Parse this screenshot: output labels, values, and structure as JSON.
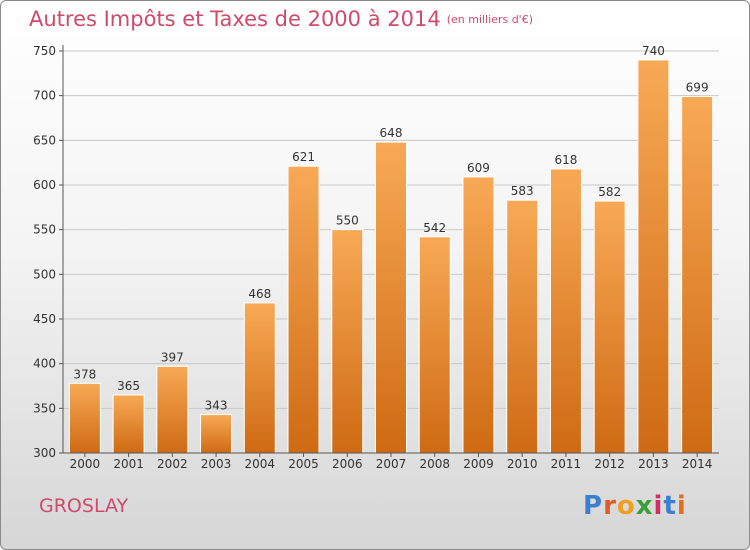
{
  "title": "Autres Impôts et Taxes de 2000 à 2014",
  "subtitle": "(en milliers d'€)",
  "location": "GROSLAY",
  "logo": {
    "text": "Proxiti",
    "letter_colors": [
      "#3a7fd0",
      "#e05a2a",
      "#f0a020",
      "#3a9e3a",
      "#d03060",
      "#3a7fd0",
      "#e07020"
    ]
  },
  "colors": {
    "bar_top": "#f8a955",
    "bar_bottom": "#cf6a14",
    "title": "#d04a6a"
  },
  "chart_data": {
    "type": "bar",
    "categories": [
      "2000",
      "2001",
      "2002",
      "2003",
      "2004",
      "2005",
      "2006",
      "2007",
      "2008",
      "2009",
      "2010",
      "2011",
      "2012",
      "2013",
      "2014"
    ],
    "values": [
      378,
      365,
      397,
      343,
      468,
      621,
      550,
      648,
      542,
      609,
      583,
      618,
      582,
      740,
      699
    ],
    "ylim": [
      300,
      750
    ],
    "yticks": [
      300,
      350,
      400,
      450,
      500,
      550,
      600,
      650,
      700,
      750
    ],
    "grid": true,
    "data_labels": true
  }
}
